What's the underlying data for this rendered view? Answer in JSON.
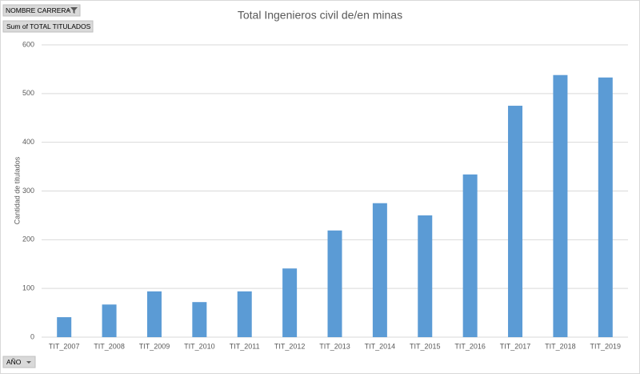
{
  "chart_data": {
    "type": "bar",
    "title": "Total  Ingenieros civil de/en minas",
    "y_label": "Cantidad de titulados",
    "field_buttons": {
      "filter": "NOMBRE CARRERA",
      "values": "Sum of TOTAL TITULADOS",
      "axis": "AÑO"
    },
    "categories": [
      "TIT_2007",
      "TIT_2008",
      "TIT_2009",
      "TIT_2010",
      "TIT_2011",
      "TIT_2012",
      "TIT_2013",
      "TIT_2014",
      "TIT_2015",
      "TIT_2016",
      "TIT_2017",
      "TIT_2018",
      "TIT_2019"
    ],
    "values": [
      41,
      67,
      94,
      72,
      94,
      141,
      219,
      275,
      250,
      334,
      475,
      538,
      533
    ],
    "color": "#5b9bd5",
    "ylim": [
      0,
      600
    ],
    "yticks": [
      0,
      100,
      200,
      300,
      400,
      500,
      600
    ],
    "grid": true
  }
}
